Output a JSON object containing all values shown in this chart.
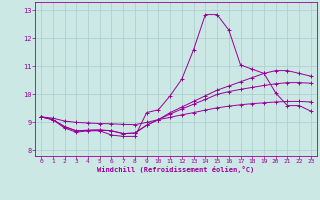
{
  "xlabel": "Windchill (Refroidissement éolien,°C)",
  "bg_color": "#cce8e4",
  "grid_color": "#aacccc",
  "line_color": "#990099",
  "x_ticks": [
    0,
    1,
    2,
    3,
    4,
    5,
    6,
    7,
    8,
    9,
    10,
    11,
    12,
    13,
    14,
    15,
    16,
    17,
    18,
    19,
    20,
    21,
    22,
    23
  ],
  "y_ticks": [
    8,
    9,
    10,
    11,
    12,
    13
  ],
  "xlim": [
    -0.5,
    23.5
  ],
  "ylim": [
    7.8,
    13.3
  ],
  "series1": [
    9.2,
    9.1,
    8.8,
    8.65,
    8.7,
    8.7,
    8.55,
    8.5,
    8.5,
    9.35,
    9.45,
    9.95,
    10.55,
    11.6,
    12.85,
    12.85,
    12.3,
    11.05,
    10.9,
    10.75,
    10.05,
    9.6,
    9.6,
    9.4
  ],
  "series2": [
    9.2,
    9.1,
    8.85,
    8.7,
    8.72,
    8.73,
    8.7,
    8.6,
    8.62,
    8.9,
    9.1,
    9.35,
    9.55,
    9.75,
    9.95,
    10.15,
    10.3,
    10.45,
    10.6,
    10.75,
    10.85,
    10.85,
    10.75,
    10.65
  ],
  "series3": [
    9.2,
    9.1,
    8.85,
    8.7,
    8.72,
    8.73,
    8.7,
    8.6,
    8.62,
    8.9,
    9.1,
    9.3,
    9.48,
    9.65,
    9.82,
    10.0,
    10.1,
    10.18,
    10.25,
    10.32,
    10.38,
    10.42,
    10.42,
    10.4
  ],
  "series4": [
    9.2,
    9.15,
    9.05,
    9.0,
    8.98,
    8.96,
    8.95,
    8.93,
    8.92,
    9.0,
    9.1,
    9.18,
    9.27,
    9.35,
    9.44,
    9.52,
    9.58,
    9.63,
    9.67,
    9.7,
    9.73,
    9.75,
    9.75,
    9.73
  ]
}
